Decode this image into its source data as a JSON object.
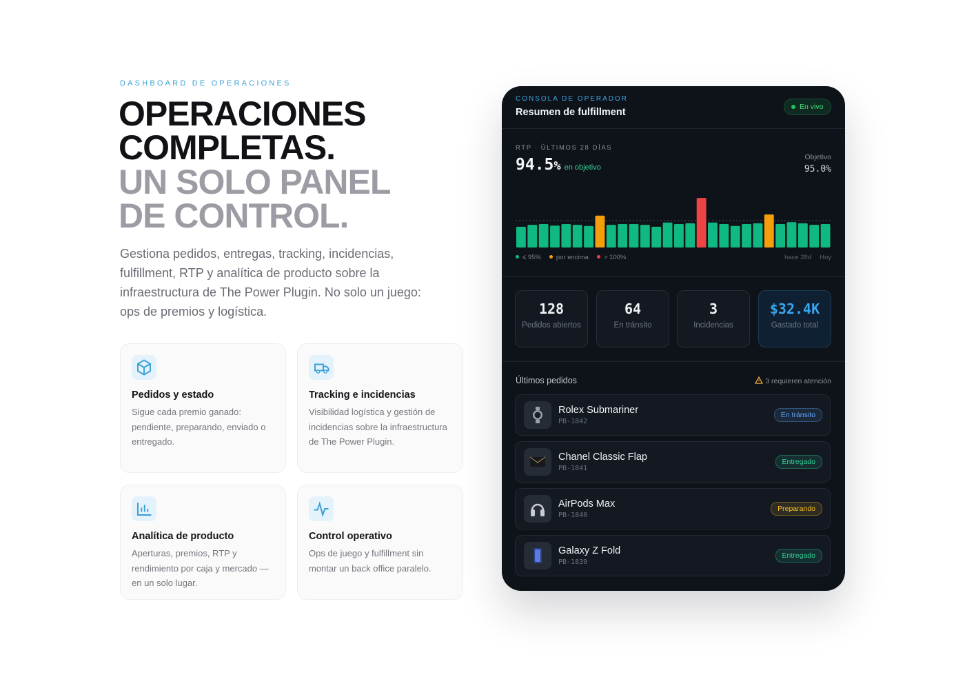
{
  "eyebrow": "DASHBOARD DE OPERACIONES",
  "headline": [
    "OPERACIONES",
    "COMPLETAS.",
    "UN SOLO PANEL",
    "DE CONTROL."
  ],
  "description": "Gestiona pedidos, entregas, tracking, incidencias, fulfillment, RTP y analítica de producto sobre la infraestructura de The Power Plugin. No solo un juego: ops de premios y logística.",
  "features": [
    {
      "title": "Pedidos y estado",
      "text": "Sigue cada premio ganado: pendiente, preparando, enviado o entregado."
    },
    {
      "title": "Tracking e incidencias",
      "text": "Visibilidad logística y gestión de incidencias sobre la infraestructura de The Power Plugin."
    },
    {
      "title": "Analítica de producto",
      "text": "Aperturas, premios, RTP y rendimiento por caja y mercado — en un solo lugar."
    },
    {
      "title": "Control operativo",
      "text": "Ops de juego y fulfillment sin montar un back office paralelo."
    }
  ],
  "console": {
    "eyebrow": "CONSOLA DE OPERADOR",
    "title": "Resumen de fulfillment",
    "status": "En vivo",
    "rtp_label": "RTP · ÚLTIMOS 28 DÍAS",
    "rtp_value": "94.5",
    "rtp_unit": "%",
    "rtp_note": "en objetivo",
    "target_label": "Objetivo",
    "chart": {
      "type": "bar",
      "values": [
        93.4,
        93.9,
        94.1,
        93.7,
        94.1,
        93.9,
        93.6,
        96.3,
        93.9,
        94.1,
        94.1,
        93.9,
        93.4,
        94.5,
        94.1,
        94.3,
        100.9,
        94.5,
        94.1,
        93.6,
        94.1,
        94.3,
        96.6,
        94.1,
        94.6,
        94.3,
        93.9,
        94.1
      ],
      "colors": [
        "#10b981",
        "#10b981",
        "#10b981",
        "#10b981",
        "#10b981",
        "#10b981",
        "#10b981",
        "#f59e0b",
        "#10b981",
        "#10b981",
        "#10b981",
        "#10b981",
        "#10b981",
        "#10b981",
        "#10b981",
        "#10b981",
        "#ef4444",
        "#10b981",
        "#10b981",
        "#10b981",
        "#10b981",
        "#10b981",
        "#f59e0b",
        "#10b981",
        "#10b981",
        "#10b981",
        "#10b981",
        "#10b981"
      ],
      "ylim": [
        88,
        102
      ],
      "target": {
        "value": 95.0,
        "label": "95.0%"
      },
      "legend": [
        {
          "label": "≤ 95%",
          "color": "#10b981"
        },
        {
          "label": "por encima",
          "color": "#f59e0b"
        },
        {
          "label": "> 100%",
          "color": "#ef4444"
        }
      ],
      "x_start": "hace 28d",
      "x_end": "Hoy"
    },
    "kpis": [
      {
        "value": "128",
        "label": "Pedidos abiertos"
      },
      {
        "value": "64",
        "label": "En tránsito"
      },
      {
        "value": "3",
        "label": "Incidencias"
      },
      {
        "value": "$32.4K",
        "label": "Gastado total"
      }
    ],
    "orders_title": "Últimos pedidos",
    "alert": "3 requieren atención",
    "orders": [
      {
        "name": "Rolex Submariner",
        "id": "PB-1842",
        "status": "En tránsito",
        "color": "#60a5fa"
      },
      {
        "name": "Chanel Classic Flap",
        "id": "PB-1841",
        "status": "Entregado",
        "color": "#34d399"
      },
      {
        "name": "AirPods Max",
        "id": "PB-1840",
        "status": "Preparando",
        "color": "#fbbf24"
      },
      {
        "name": "Galaxy Z Fold",
        "id": "PB-1839",
        "status": "Entregado",
        "color": "#34d399"
      }
    ]
  }
}
